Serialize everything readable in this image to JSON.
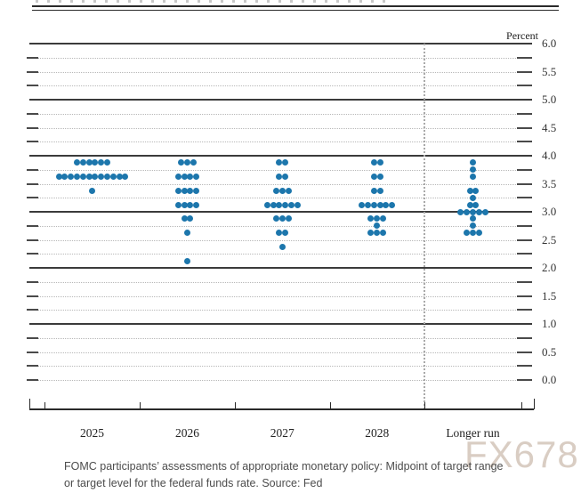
{
  "chart_data": {
    "type": "scatter",
    "subtype": "fomc-dot-plot",
    "title": "",
    "unit_label": "Percent",
    "categories": [
      "2025",
      "2026",
      "2027",
      "2028",
      "Longer run"
    ],
    "y_axis": {
      "min": 0.0,
      "max": 6.0,
      "grid_step": 0.25,
      "label_step": 0.5,
      "solid_line_step": 1.0,
      "tick_labels": [
        "6.0",
        "5.5",
        "5.0",
        "4.5",
        "4.0",
        "3.5",
        "3.0",
        "2.5",
        "2.0",
        "1.5",
        "1.0",
        "0.5",
        "0.0"
      ]
    },
    "legend_position": "none",
    "grid": true,
    "separator_after_category_index": 3,
    "dot_color": "#1c76ac",
    "series": [
      {
        "category": "2025",
        "dots": [
          {
            "rate": 3.875,
            "count": 6
          },
          {
            "rate": 3.625,
            "count": 12
          },
          {
            "rate": 3.375,
            "count": 1
          }
        ]
      },
      {
        "category": "2026",
        "dots": [
          {
            "rate": 3.875,
            "count": 3
          },
          {
            "rate": 3.625,
            "count": 4
          },
          {
            "rate": 3.375,
            "count": 4
          },
          {
            "rate": 3.125,
            "count": 4
          },
          {
            "rate": 2.875,
            "count": 2
          },
          {
            "rate": 2.625,
            "count": 1
          },
          {
            "rate": 2.125,
            "count": 1
          }
        ]
      },
      {
        "category": "2027",
        "dots": [
          {
            "rate": 3.875,
            "count": 2
          },
          {
            "rate": 3.625,
            "count": 2
          },
          {
            "rate": 3.375,
            "count": 3
          },
          {
            "rate": 3.125,
            "count": 6
          },
          {
            "rate": 2.875,
            "count": 3
          },
          {
            "rate": 2.625,
            "count": 2
          },
          {
            "rate": 2.375,
            "count": 1
          }
        ]
      },
      {
        "category": "2028",
        "dots": [
          {
            "rate": 3.875,
            "count": 2
          },
          {
            "rate": 3.625,
            "count": 2
          },
          {
            "rate": 3.375,
            "count": 2
          },
          {
            "rate": 3.125,
            "count": 6
          },
          {
            "rate": 2.875,
            "count": 3
          },
          {
            "rate": 2.75,
            "count": 1
          },
          {
            "rate": 2.625,
            "count": 3
          }
        ]
      },
      {
        "category": "Longer run",
        "dots": [
          {
            "rate": 3.875,
            "count": 1
          },
          {
            "rate": 3.75,
            "count": 1
          },
          {
            "rate": 3.625,
            "count": 1
          },
          {
            "rate": 3.375,
            "count": 2
          },
          {
            "rate": 3.25,
            "count": 1
          },
          {
            "rate": 3.125,
            "count": 2
          },
          {
            "rate": 3.0,
            "count": 5
          },
          {
            "rate": 2.875,
            "count": 1
          },
          {
            "rate": 2.75,
            "count": 1
          },
          {
            "rate": 2.625,
            "count": 3
          }
        ]
      }
    ]
  },
  "caption": {
    "lines": [
      "FOMC participants’ assessments of appropriate monetary policy: Midpoint of target range",
      "or target level for the federal funds rate. Source: Fed"
    ]
  },
  "watermark": {
    "text": "FX678",
    "color": "#d9cdc3"
  }
}
